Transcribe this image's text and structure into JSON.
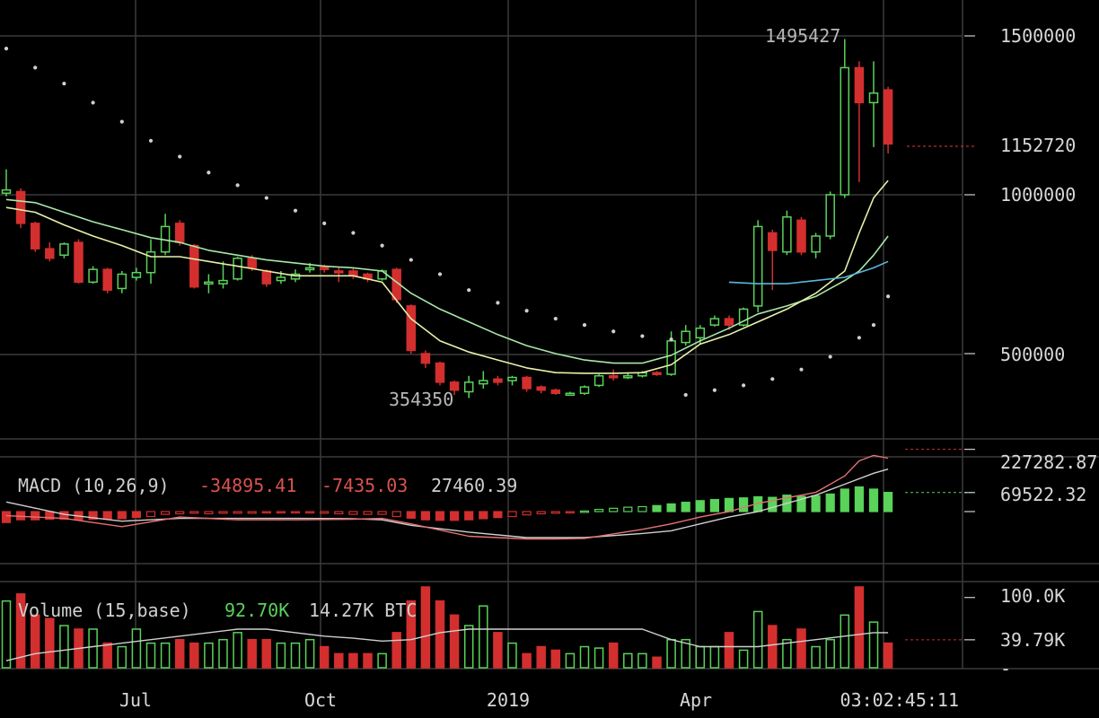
{
  "chart_data": {
    "type": "candlestick",
    "price": {
      "y_axis_ticks": [
        "1500000",
        "1000000",
        "500000"
      ],
      "ylim": [
        250000,
        1600000
      ],
      "current_price_label": "1152720",
      "current_price": 1152720,
      "high_annotation": "1495427",
      "high_value": 1495427,
      "low_annotation": "354350",
      "low_value": 354350,
      "candles": [
        [
          1005000,
          1015000,
          1080000,
          995000
        ],
        [
          1010000,
          910000,
          1020000,
          895000
        ],
        [
          910000,
          830000,
          915000,
          820000
        ],
        [
          830000,
          800000,
          850000,
          790000
        ],
        [
          810000,
          845000,
          850000,
          800000
        ],
        [
          850000,
          725000,
          860000,
          720000
        ],
        [
          725000,
          765000,
          775000,
          720000
        ],
        [
          765000,
          700000,
          770000,
          690000
        ],
        [
          705000,
          750000,
          760000,
          690000
        ],
        [
          740000,
          755000,
          770000,
          730000
        ],
        [
          755000,
          820000,
          860000,
          720000
        ],
        [
          820000,
          900000,
          940000,
          810000
        ],
        [
          910000,
          850000,
          920000,
          840000
        ],
        [
          840000,
          710000,
          845000,
          705000
        ],
        [
          720000,
          725000,
          750000,
          690000
        ],
        [
          720000,
          730000,
          790000,
          705000
        ],
        [
          735000,
          800000,
          805000,
          730000
        ],
        [
          800000,
          770000,
          810000,
          760000
        ],
        [
          760000,
          720000,
          765000,
          710000
        ],
        [
          730000,
          740000,
          760000,
          720000
        ],
        [
          735000,
          750000,
          765000,
          725000
        ],
        [
          765000,
          770000,
          785000,
          755000
        ],
        [
          775000,
          765000,
          780000,
          755000
        ],
        [
          760000,
          755000,
          770000,
          725000
        ],
        [
          760000,
          745000,
          770000,
          735000
        ],
        [
          750000,
          735000,
          755000,
          725000
        ],
        [
          735000,
          760000,
          765000,
          730000
        ],
        [
          765000,
          670000,
          770000,
          660000
        ],
        [
          650000,
          510000,
          655000,
          500000
        ],
        [
          500000,
          470000,
          510000,
          455000
        ],
        [
          470000,
          410000,
          475000,
          400000
        ],
        [
          410000,
          385000,
          415000,
          370000
        ],
        [
          380000,
          410000,
          430000,
          360000
        ],
        [
          405000,
          415000,
          445000,
          390000
        ],
        [
          420000,
          410000,
          430000,
          400000
        ],
        [
          415000,
          425000,
          430000,
          400000
        ],
        [
          425000,
          390000,
          430000,
          380000
        ],
        [
          395000,
          385000,
          400000,
          375000
        ],
        [
          385000,
          375000,
          390000,
          370000
        ],
        [
          375000,
          375000,
          380000,
          370000
        ],
        [
          375000,
          395000,
          400000,
          370000
        ],
        [
          400000,
          430000,
          435000,
          395000
        ],
        [
          430000,
          425000,
          450000,
          415000
        ],
        [
          425000,
          430000,
          440000,
          420000
        ],
        [
          430000,
          440000,
          445000,
          425000
        ],
        [
          440000,
          435000,
          445000,
          430000
        ],
        [
          435000,
          540000,
          570000,
          430000
        ],
        [
          535000,
          570000,
          590000,
          525000
        ],
        [
          550000,
          580000,
          590000,
          530000
        ],
        [
          590000,
          610000,
          620000,
          585000
        ],
        [
          610000,
          590000,
          620000,
          575000
        ],
        [
          590000,
          640000,
          645000,
          585000
        ],
        [
          650000,
          900000,
          920000,
          630000
        ],
        [
          880000,
          825000,
          890000,
          700000
        ],
        [
          820000,
          930000,
          950000,
          810000
        ],
        [
          920000,
          820000,
          930000,
          810000
        ],
        [
          820000,
          870000,
          880000,
          800000
        ],
        [
          870000,
          1000000,
          1010000,
          860000
        ],
        [
          1000000,
          1400000,
          1490000,
          990000
        ],
        [
          1400000,
          1290000,
          1420000,
          1040000
        ],
        [
          1290000,
          1320000,
          1420000,
          1150000
        ],
        [
          1330000,
          1160000,
          1340000,
          1130000
        ]
      ],
      "ma_fast": [
        [
          0,
          960000
        ],
        [
          2,
          945000
        ],
        [
          4,
          905000
        ],
        [
          6,
          870000
        ],
        [
          8,
          840000
        ],
        [
          10,
          805000
        ],
        [
          12,
          805000
        ],
        [
          14,
          790000
        ],
        [
          16,
          775000
        ],
        [
          18,
          760000
        ],
        [
          20,
          745000
        ],
        [
          22,
          745000
        ],
        [
          24,
          745000
        ],
        [
          26,
          725000
        ],
        [
          28,
          610000
        ],
        [
          30,
          540000
        ],
        [
          32,
          505000
        ],
        [
          34,
          480000
        ],
        [
          36,
          455000
        ],
        [
          38,
          440000
        ],
        [
          40,
          438000
        ],
        [
          42,
          438000
        ],
        [
          44,
          440000
        ],
        [
          46,
          465000
        ],
        [
          48,
          530000
        ],
        [
          50,
          560000
        ],
        [
          52,
          600000
        ],
        [
          54,
          640000
        ],
        [
          56,
          690000
        ],
        [
          58,
          760000
        ],
        [
          59,
          880000
        ],
        [
          60,
          990000
        ],
        [
          61,
          1045000
        ]
      ],
      "ma_mid": [
        [
          0,
          985000
        ],
        [
          2,
          975000
        ],
        [
          4,
          945000
        ],
        [
          6,
          915000
        ],
        [
          8,
          890000
        ],
        [
          10,
          865000
        ],
        [
          12,
          850000
        ],
        [
          14,
          825000
        ],
        [
          16,
          810000
        ],
        [
          18,
          795000
        ],
        [
          20,
          785000
        ],
        [
          22,
          775000
        ],
        [
          24,
          770000
        ],
        [
          26,
          760000
        ],
        [
          28,
          690000
        ],
        [
          30,
          640000
        ],
        [
          32,
          600000
        ],
        [
          34,
          560000
        ],
        [
          36,
          525000
        ],
        [
          38,
          500000
        ],
        [
          40,
          480000
        ],
        [
          42,
          470000
        ],
        [
          44,
          470000
        ],
        [
          46,
          495000
        ],
        [
          48,
          540000
        ],
        [
          50,
          580000
        ],
        [
          52,
          625000
        ],
        [
          54,
          650000
        ],
        [
          56,
          680000
        ],
        [
          58,
          730000
        ],
        [
          59,
          760000
        ],
        [
          60,
          810000
        ],
        [
          61,
          870000
        ]
      ],
      "ma_slow": [
        [
          50,
          725000
        ],
        [
          52,
          720000
        ],
        [
          54,
          720000
        ],
        [
          56,
          730000
        ],
        [
          58,
          740000
        ],
        [
          60,
          770000
        ],
        [
          61,
          790000
        ]
      ],
      "sar": [
        [
          0,
          1460000
        ],
        [
          2,
          1400000
        ],
        [
          4,
          1350000
        ],
        [
          6,
          1290000
        ],
        [
          8,
          1230000
        ],
        [
          10,
          1170000
        ],
        [
          12,
          1120000
        ],
        [
          14,
          1070000
        ],
        [
          16,
          1030000
        ],
        [
          18,
          990000
        ],
        [
          20,
          950000
        ],
        [
          22,
          910000
        ],
        [
          24,
          880000
        ],
        [
          26,
          840000
        ],
        [
          28,
          795000
        ],
        [
          30,
          750000
        ],
        [
          32,
          700000
        ],
        [
          34,
          660000
        ],
        [
          36,
          635000
        ],
        [
          38,
          610000
        ],
        [
          40,
          590000
        ],
        [
          42,
          570000
        ],
        [
          44,
          555000
        ],
        [
          46,
          545000
        ],
        [
          47,
          370000
        ],
        [
          49,
          385000
        ],
        [
          51,
          400000
        ],
        [
          53,
          420000
        ],
        [
          55,
          450000
        ],
        [
          57,
          490000
        ],
        [
          59,
          550000
        ],
        [
          60,
          590000
        ],
        [
          61,
          680000
        ]
      ]
    },
    "macd": {
      "label": "MACD (10,26,9)",
      "values_text": [
        "-34895.41",
        "-7435.03",
        "27460.39"
      ],
      "value_colors": [
        "#d9534f",
        "#d9534f",
        "#cfcfcf"
      ],
      "y_axis_ticks": [
        "227282.87",
        "69522.32"
      ],
      "ylim": [
        -150000,
        260000
      ],
      "histogram": [
        -40000,
        -30000,
        -30000,
        -28000,
        -28000,
        -30000,
        -28000,
        -26000,
        -26000,
        -22000,
        -18000,
        -10000,
        -8000,
        -6000,
        -8000,
        -6000,
        -6000,
        -6000,
        -4000,
        -4000,
        -4000,
        -4000,
        -6000,
        -8000,
        -10000,
        -10000,
        -10000,
        -18000,
        -24000,
        -30000,
        -32000,
        -32000,
        -30000,
        -26000,
        -22000,
        -18000,
        -12000,
        -8000,
        -6000,
        -2000,
        2000,
        8000,
        12000,
        16000,
        18000,
        22000,
        28000,
        34000,
        40000,
        44000,
        48000,
        50000,
        54000,
        52000,
        60000,
        56000,
        58000,
        64000,
        82000,
        90000,
        82000,
        70000
      ],
      "macd_line": [
        [
          0,
          -15000
        ],
        [
          4,
          -25000
        ],
        [
          8,
          -55000
        ],
        [
          12,
          -20000
        ],
        [
          16,
          -30000
        ],
        [
          20,
          -30000
        ],
        [
          24,
          -28000
        ],
        [
          26,
          -25000
        ],
        [
          28,
          -45000
        ],
        [
          32,
          -90000
        ],
        [
          36,
          -100000
        ],
        [
          38,
          -100000
        ],
        [
          40,
          -98000
        ],
        [
          44,
          -65000
        ],
        [
          46,
          -45000
        ],
        [
          48,
          -20000
        ],
        [
          50,
          0
        ],
        [
          52,
          30000
        ],
        [
          54,
          50000
        ],
        [
          56,
          70000
        ],
        [
          58,
          130000
        ],
        [
          59,
          185000
        ],
        [
          60,
          205000
        ],
        [
          61,
          195000
        ]
      ],
      "signal_line": [
        [
          0,
          35000
        ],
        [
          4,
          -10000
        ],
        [
          8,
          -35000
        ],
        [
          12,
          -25000
        ],
        [
          16,
          -25000
        ],
        [
          20,
          -25000
        ],
        [
          24,
          -26000
        ],
        [
          26,
          -30000
        ],
        [
          28,
          -50000
        ],
        [
          32,
          -75000
        ],
        [
          36,
          -95000
        ],
        [
          40,
          -95000
        ],
        [
          44,
          -80000
        ],
        [
          46,
          -70000
        ],
        [
          48,
          -45000
        ],
        [
          50,
          -20000
        ],
        [
          52,
          0
        ],
        [
          54,
          30000
        ],
        [
          56,
          60000
        ],
        [
          58,
          100000
        ],
        [
          60,
          140000
        ],
        [
          61,
          155000
        ]
      ]
    },
    "volume": {
      "label": "Volume (15,base)",
      "values_text": [
        "92.70K",
        "14.27K BTC"
      ],
      "value_colors": [
        "#59d359",
        "#cfcfcf"
      ],
      "y_axis_ticks": [
        "100.0K",
        "39.79K"
      ],
      "ylim": [
        0,
        115000
      ],
      "bars": [
        95000,
        105000,
        75000,
        70000,
        60000,
        55000,
        55000,
        35000,
        30000,
        55000,
        35000,
        35000,
        40000,
        35000,
        35000,
        40000,
        50000,
        40000,
        40000,
        35000,
        35000,
        40000,
        30000,
        20000,
        20000,
        20000,
        20000,
        50000,
        95000,
        115000,
        95000,
        75000,
        60000,
        88000,
        50000,
        35000,
        20000,
        30000,
        25000,
        20000,
        30000,
        28000,
        35000,
        20000,
        20000,
        15000,
        40000,
        40000,
        30000,
        30000,
        50000,
        25000,
        80000,
        60000,
        40000,
        55000,
        30000,
        40000,
        75000,
        115000,
        65000,
        35000
      ],
      "ma": [
        [
          0,
          10000
        ],
        [
          2,
          20000
        ],
        [
          4,
          25000
        ],
        [
          6,
          30000
        ],
        [
          8,
          35000
        ],
        [
          10,
          40000
        ],
        [
          12,
          45000
        ],
        [
          14,
          50000
        ],
        [
          16,
          55000
        ],
        [
          18,
          55000
        ],
        [
          20,
          50000
        ],
        [
          22,
          45000
        ],
        [
          24,
          42000
        ],
        [
          26,
          38000
        ],
        [
          28,
          40000
        ],
        [
          30,
          50000
        ],
        [
          32,
          55000
        ],
        [
          34,
          55000
        ],
        [
          36,
          55000
        ],
        [
          38,
          55000
        ],
        [
          40,
          55000
        ],
        [
          42,
          55000
        ],
        [
          44,
          55000
        ],
        [
          46,
          40000
        ],
        [
          48,
          30000
        ],
        [
          50,
          30000
        ],
        [
          52,
          30000
        ],
        [
          54,
          35000
        ],
        [
          56,
          40000
        ],
        [
          58,
          45000
        ],
        [
          60,
          50000
        ],
        [
          61,
          50000
        ]
      ]
    },
    "x_axis_labels": [
      "Jul",
      "Oct",
      "2019",
      "Apr"
    ],
    "countdown": "03:02:45:11",
    "colors": {
      "up": "#59d359",
      "down": "#d32f2f",
      "ma_fast": "#e8f0a8",
      "ma_mid": "#a8e8a8",
      "ma_slow": "#5ab8d8",
      "sar": "#cfcfcf",
      "macd_line": "#e57373",
      "signal_line": "#cfcfcf",
      "volume_ma": "#cfcfcf",
      "grid": "#3a3a3a"
    }
  }
}
